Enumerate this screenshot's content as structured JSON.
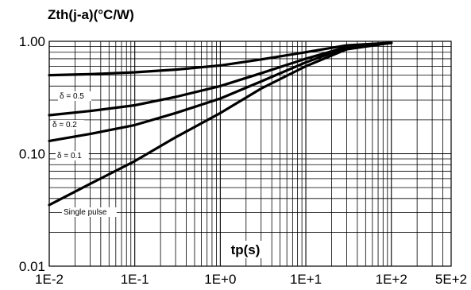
{
  "chart_data": {
    "type": "line",
    "title": "Zth(j-a)(°C/W)",
    "xlabel": "tp(s)",
    "ylabel": "",
    "x_scale": "log",
    "y_scale": "log",
    "xlim": [
      0.01,
      500
    ],
    "ylim": [
      0.01,
      1.0
    ],
    "grid": true,
    "x_tick_labels": [
      "1E-2",
      "1E-1",
      "1E+0",
      "1E+1",
      "1E+2",
      "5E+2"
    ],
    "x_tick_values": [
      0.01,
      0.1,
      1,
      10,
      100,
      500
    ],
    "y_tick_labels": [
      "0.01",
      "0.10",
      "1.00"
    ],
    "y_tick_values": [
      0.01,
      0.1,
      1.0
    ],
    "series": [
      {
        "name": "δ = 0.5",
        "x": [
          0.01,
          0.03,
          0.1,
          0.3,
          1,
          3,
          10,
          30,
          100
        ],
        "y": [
          0.5,
          0.51,
          0.53,
          0.56,
          0.61,
          0.69,
          0.8,
          0.92,
          0.97
        ]
      },
      {
        "name": "δ = 0.2",
        "x": [
          0.01,
          0.03,
          0.1,
          0.3,
          1,
          3,
          10,
          30,
          100
        ],
        "y": [
          0.22,
          0.24,
          0.27,
          0.32,
          0.4,
          0.52,
          0.7,
          0.89,
          0.97
        ]
      },
      {
        "name": "δ = 0.1",
        "x": [
          0.01,
          0.03,
          0.1,
          0.3,
          1,
          3,
          10,
          30,
          100
        ],
        "y": [
          0.13,
          0.15,
          0.18,
          0.23,
          0.31,
          0.44,
          0.65,
          0.88,
          0.97
        ]
      },
      {
        "name": "Single pulse",
        "x": [
          0.01,
          0.03,
          0.1,
          0.3,
          1,
          3,
          10,
          30,
          100
        ],
        "y": [
          0.035,
          0.054,
          0.086,
          0.14,
          0.23,
          0.38,
          0.6,
          0.85,
          0.97
        ]
      }
    ]
  }
}
